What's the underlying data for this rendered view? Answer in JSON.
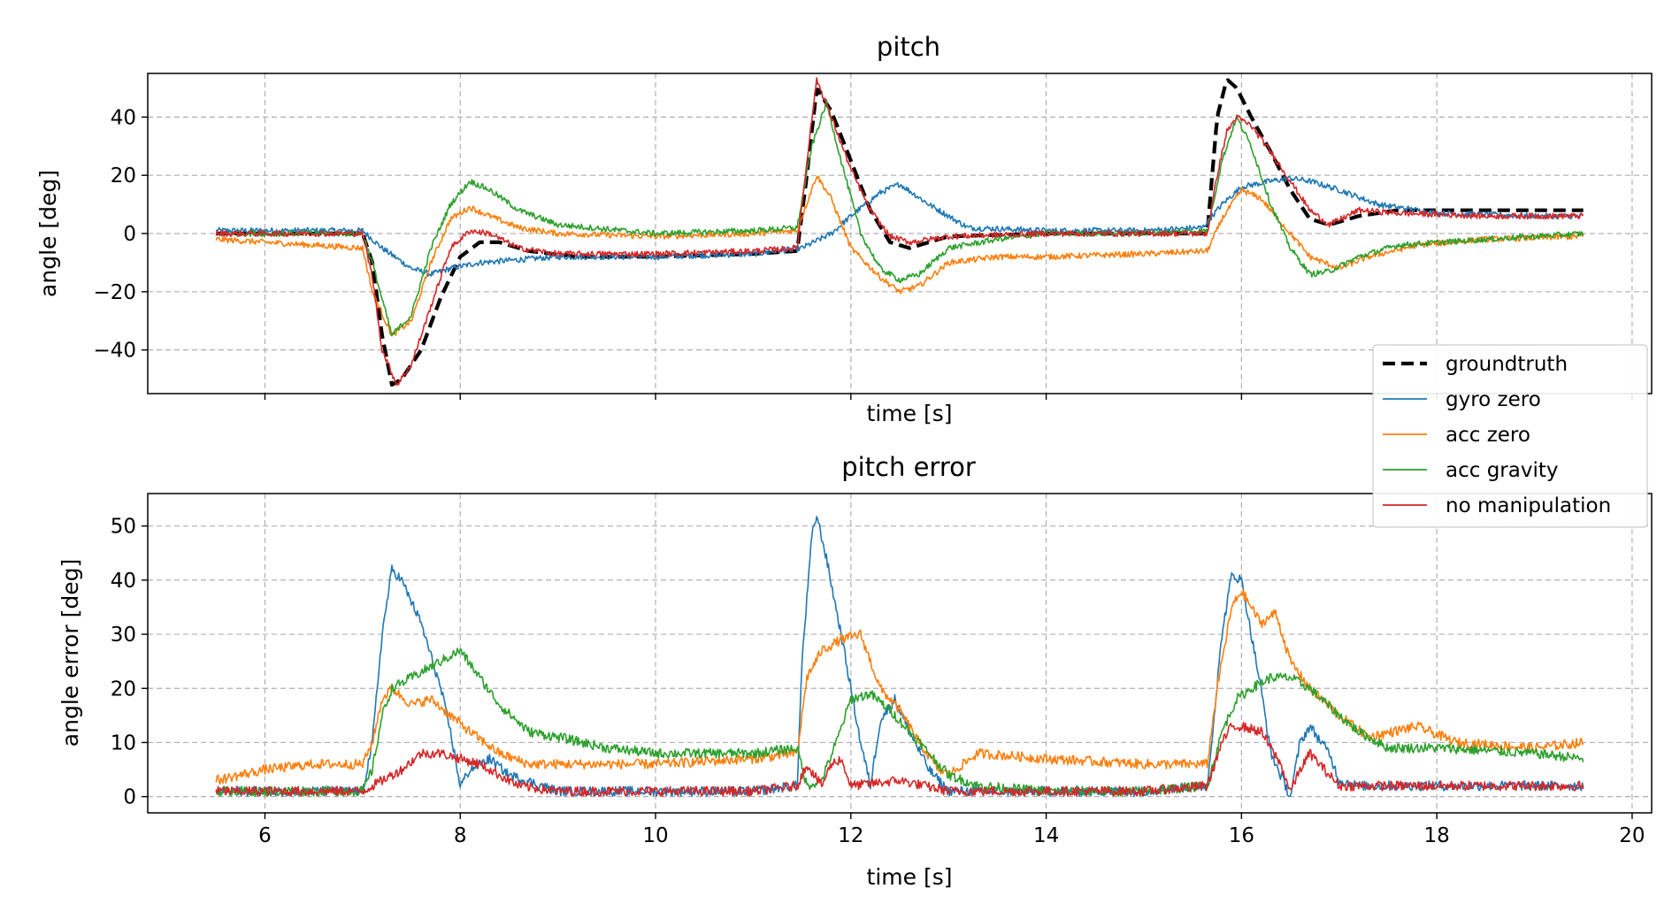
{
  "chart_data": [
    {
      "type": "line",
      "title": "pitch",
      "xlabel": "time [s]",
      "ylabel": "angle [deg]",
      "xlim": [
        4.8,
        20.2
      ],
      "ylim": [
        -55,
        55
      ],
      "xticks": [
        6,
        8,
        10,
        12,
        14,
        16,
        18,
        20
      ],
      "yticks": [
        -40,
        -20,
        0,
        20,
        40
      ],
      "ytick_labels": [
        "−40",
        "−20",
        "0",
        "20",
        "40"
      ],
      "grid": true,
      "series": [
        {
          "name": "groundtruth",
          "color": "#000000",
          "style": "dashed",
          "x": [
            5.5,
            7.0,
            7.1,
            7.2,
            7.3,
            7.4,
            7.6,
            7.8,
            8.0,
            8.2,
            8.4,
            8.7,
            9.2,
            10.0,
            11.0,
            11.45,
            11.55,
            11.65,
            11.8,
            12.0,
            12.2,
            12.4,
            12.6,
            13.0,
            14.0,
            15.0,
            15.65,
            15.75,
            15.85,
            15.95,
            16.1,
            16.3,
            16.5,
            16.7,
            16.9,
            17.2,
            17.6,
            18.5,
            19.5
          ],
          "y": [
            0,
            0,
            -10,
            -35,
            -52,
            -50,
            -40,
            -22,
            -8,
            -3,
            -3,
            -6,
            -8,
            -8,
            -7,
            -6,
            20,
            50,
            42,
            25,
            8,
            -3,
            -5,
            -1,
            0,
            0,
            0,
            40,
            53,
            50,
            40,
            28,
            15,
            5,
            3,
            6,
            8,
            8,
            8
          ]
        },
        {
          "name": "gyro zero",
          "color": "#1f77b4",
          "style": "solid",
          "x": [
            5.5,
            7.0,
            7.2,
            7.5,
            7.7,
            7.9,
            8.2,
            8.6,
            9.0,
            10.0,
            11.0,
            11.5,
            11.8,
            12.0,
            12.3,
            12.5,
            12.8,
            13.2,
            14.0,
            15.0,
            15.6,
            15.8,
            16.0,
            16.3,
            16.5,
            16.7,
            17.0,
            17.4,
            18.0,
            19.0,
            19.5
          ],
          "y": [
            1,
            1,
            -5,
            -12,
            -14,
            -12,
            -10,
            -9,
            -8,
            -8,
            -7,
            -5,
            0,
            6,
            14,
            17,
            10,
            2,
            1,
            1,
            2,
            10,
            16,
            18,
            19,
            18,
            15,
            10,
            7,
            6,
            6
          ]
        },
        {
          "name": "acc zero",
          "color": "#ff7f0e",
          "style": "solid",
          "x": [
            5.5,
            6.0,
            7.0,
            7.1,
            7.3,
            7.5,
            7.7,
            7.9,
            8.1,
            8.3,
            8.6,
            9.0,
            10.0,
            11.0,
            11.45,
            11.65,
            11.8,
            12.0,
            12.3,
            12.5,
            12.7,
            13.0,
            13.5,
            14.0,
            15.0,
            15.65,
            15.8,
            16.0,
            16.2,
            16.5,
            16.7,
            17.0,
            17.3,
            17.8,
            18.5,
            19.5
          ],
          "y": [
            -2,
            -3,
            -5,
            -20,
            -35,
            -30,
            -10,
            5,
            9,
            6,
            2,
            0,
            -1,
            0,
            1,
            20,
            12,
            -5,
            -15,
            -20,
            -18,
            -10,
            -8,
            -8,
            -7,
            -6,
            5,
            15,
            12,
            0,
            -8,
            -12,
            -8,
            -4,
            -2,
            -1
          ]
        },
        {
          "name": "acc gravity",
          "color": "#2ca02c",
          "style": "solid",
          "x": [
            5.5,
            7.0,
            7.1,
            7.3,
            7.5,
            7.7,
            7.9,
            8.1,
            8.3,
            8.6,
            9.0,
            10.0,
            11.0,
            11.45,
            11.6,
            11.75,
            11.9,
            12.1,
            12.3,
            12.5,
            12.7,
            13.0,
            13.5,
            14.0,
            15.0,
            15.65,
            15.8,
            15.95,
            16.1,
            16.3,
            16.5,
            16.7,
            16.9,
            17.2,
            17.6,
            18.5,
            19.5
          ],
          "y": [
            0,
            0,
            -10,
            -35,
            -28,
            -5,
            10,
            18,
            15,
            8,
            3,
            0,
            1,
            2,
            30,
            45,
            25,
            0,
            -12,
            -16,
            -14,
            -5,
            -2,
            0,
            0,
            1,
            25,
            40,
            30,
            10,
            -5,
            -14,
            -13,
            -8,
            -4,
            -2,
            0
          ]
        },
        {
          "name": "no manipulation",
          "color": "#d62728",
          "style": "solid",
          "x": [
            5.5,
            7.0,
            7.1,
            7.2,
            7.35,
            7.5,
            7.7,
            7.9,
            8.1,
            8.3,
            8.6,
            9.0,
            10.0,
            11.0,
            11.45,
            11.55,
            11.65,
            11.8,
            12.0,
            12.2,
            12.4,
            12.6,
            13.0,
            14.0,
            15.0,
            15.65,
            15.75,
            15.85,
            15.95,
            16.1,
            16.3,
            16.5,
            16.7,
            16.9,
            17.2,
            17.6,
            18.5,
            19.5
          ],
          "y": [
            0,
            0,
            -15,
            -40,
            -52,
            -45,
            -25,
            -5,
            1,
            0,
            -5,
            -7,
            -7,
            -6,
            -5,
            25,
            53,
            40,
            22,
            8,
            -1,
            -3,
            -1,
            0,
            0,
            0,
            20,
            35,
            40,
            37,
            28,
            18,
            8,
            3,
            8,
            7,
            6,
            6
          ]
        }
      ]
    },
    {
      "type": "line",
      "title": "pitch error",
      "xlabel": "time [s]",
      "ylabel": "angle error [deg]",
      "xlim": [
        4.8,
        20.2
      ],
      "ylim": [
        -3,
        56
      ],
      "xticks": [
        6,
        8,
        10,
        12,
        14,
        16,
        18,
        20
      ],
      "xtick_labels": [
        "6",
        "8",
        "10",
        "12",
        "14",
        "16",
        "18",
        "20"
      ],
      "yticks": [
        0,
        10,
        20,
        30,
        40,
        50
      ],
      "grid": true,
      "series": [
        {
          "name": "gyro zero",
          "color": "#1f77b4",
          "style": "solid",
          "x": [
            5.5,
            7.0,
            7.1,
            7.2,
            7.3,
            7.4,
            7.6,
            7.8,
            7.9,
            8.0,
            8.1,
            8.3,
            8.5,
            9.0,
            10.0,
            11.0,
            11.45,
            11.5,
            11.6,
            11.65,
            11.75,
            11.9,
            12.0,
            12.1,
            12.2,
            12.3,
            12.45,
            12.6,
            12.8,
            13.0,
            14.0,
            15.0,
            15.65,
            15.8,
            15.9,
            16.0,
            16.1,
            16.2,
            16.3,
            16.5,
            16.6,
            16.7,
            16.9,
            17.0,
            17.2,
            18.0,
            19.5
          ],
          "y": [
            1,
            1,
            10,
            30,
            42,
            40,
            32,
            20,
            12,
            2,
            5,
            7,
            4,
            1,
            1,
            1,
            2,
            25,
            48,
            52,
            44,
            30,
            20,
            10,
            2,
            14,
            18,
            12,
            5,
            1,
            1,
            1,
            2,
            30,
            41,
            40,
            30,
            20,
            8,
            0,
            10,
            13,
            8,
            3,
            2,
            2,
            2
          ]
        },
        {
          "name": "acc zero",
          "color": "#ff7f0e",
          "style": "solid",
          "x": [
            5.5,
            6.0,
            6.5,
            7.0,
            7.1,
            7.2,
            7.3,
            7.5,
            7.7,
            7.9,
            8.1,
            8.4,
            8.7,
            9.0,
            10.0,
            11.0,
            11.45,
            11.55,
            11.7,
            11.9,
            12.1,
            12.3,
            12.5,
            12.7,
            12.9,
            13.0,
            13.3,
            14.0,
            15.0,
            15.65,
            15.75,
            15.9,
            16.0,
            16.2,
            16.35,
            16.5,
            16.7,
            17.0,
            17.3,
            17.8,
            18.2,
            19.0,
            19.5
          ],
          "y": [
            3,
            5,
            6,
            6,
            10,
            18,
            20,
            17,
            18,
            15,
            12,
            8,
            6,
            6,
            6,
            7,
            8,
            22,
            27,
            29,
            30,
            20,
            16,
            10,
            5,
            4,
            8,
            7,
            6,
            6,
            20,
            35,
            38,
            32,
            34,
            25,
            20,
            15,
            11,
            13,
            10,
            9,
            10
          ]
        },
        {
          "name": "acc gravity",
          "color": "#2ca02c",
          "style": "solid",
          "x": [
            5.5,
            7.0,
            7.1,
            7.2,
            7.3,
            7.5,
            7.7,
            7.9,
            8.0,
            8.2,
            8.4,
            8.7,
            9.0,
            9.5,
            10.0,
            11.0,
            11.45,
            11.55,
            11.7,
            11.85,
            12.0,
            12.2,
            12.4,
            12.6,
            12.8,
            13.0,
            13.3,
            14.0,
            15.0,
            15.65,
            15.8,
            15.95,
            16.1,
            16.3,
            16.5,
            16.7,
            17.0,
            17.2,
            17.5,
            18.0,
            19.0,
            19.5
          ],
          "y": [
            1,
            1,
            5,
            15,
            20,
            22,
            24,
            26,
            27,
            22,
            17,
            12,
            11,
            9,
            8,
            8,
            9,
            2,
            3,
            10,
            18,
            19,
            16,
            12,
            8,
            4,
            2,
            1,
            1,
            2,
            12,
            18,
            20,
            22,
            22,
            20,
            15,
            12,
            9,
            9,
            8,
            7
          ]
        },
        {
          "name": "no manipulation",
          "color": "#d62728",
          "style": "solid",
          "x": [
            5.5,
            7.0,
            7.2,
            7.4,
            7.6,
            7.8,
            8.0,
            8.2,
            8.4,
            8.6,
            9.0,
            10.0,
            11.0,
            11.45,
            11.55,
            11.7,
            11.8,
            11.9,
            12.0,
            12.5,
            13.0,
            14.0,
            15.0,
            15.65,
            15.8,
            15.9,
            16.0,
            16.2,
            16.4,
            16.5,
            16.6,
            16.7,
            16.9,
            17.0,
            17.2,
            18.0,
            19.5
          ],
          "y": [
            1,
            1,
            3,
            5,
            8,
            8,
            7,
            6,
            4,
            2,
            1,
            1,
            1,
            2,
            6,
            2,
            6,
            7,
            2,
            3,
            1,
            1,
            1,
            2,
            10,
            13,
            13,
            12,
            6,
            1,
            5,
            8,
            4,
            2,
            2,
            2,
            2
          ]
        }
      ]
    }
  ],
  "legend": {
    "placement": "right, between panels",
    "entries": [
      "groundtruth",
      "gyro zero",
      "acc zero",
      "acc gravity",
      "no manipulation"
    ]
  }
}
